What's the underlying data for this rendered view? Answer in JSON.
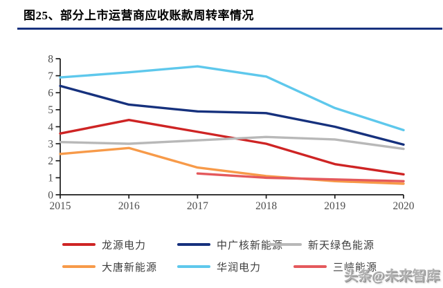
{
  "page": {
    "title": "图25、部分上市运营商应收账款周转率情况",
    "watermark": "头条@未来智库",
    "accent_color": "#17317e",
    "axis_color": "#1a1a1a",
    "label_color": "#4d4d4d"
  },
  "chart_data": {
    "type": "line",
    "title": "图25、部分上市运营商应收账款周转率情况",
    "xlabel": "",
    "ylabel": "",
    "categories": [
      "2015",
      "2016",
      "2017",
      "2018",
      "2019",
      "2020"
    ],
    "y_ticks": [
      0,
      1,
      2,
      3,
      4,
      5,
      6,
      7,
      8
    ],
    "ylim": [
      0,
      8
    ],
    "grid": false,
    "legend_position": "bottom",
    "series": [
      {
        "name": "龙源电力",
        "color": "#ce2424",
        "values": [
          3.6,
          4.4,
          3.7,
          3.0,
          1.8,
          1.2
        ]
      },
      {
        "name": "中广核新能源",
        "color": "#16317d",
        "values": [
          6.4,
          5.3,
          4.9,
          4.8,
          4.0,
          2.95
        ]
      },
      {
        "name": "新天绿色能源",
        "color": "#b8b8b8",
        "values": [
          3.1,
          3.0,
          3.2,
          3.4,
          3.25,
          2.7
        ]
      },
      {
        "name": "大唐新能源",
        "color": "#f79a49",
        "values": [
          2.4,
          2.75,
          1.6,
          1.1,
          0.8,
          0.65
        ]
      },
      {
        "name": "华润电力",
        "color": "#5ec8ec",
        "values": [
          6.9,
          7.2,
          7.55,
          6.95,
          5.1,
          3.8
        ]
      },
      {
        "name": "三峡能源",
        "color": "#e4595c",
        "values": [
          null,
          null,
          1.25,
          1.0,
          0.9,
          0.8
        ]
      }
    ]
  }
}
